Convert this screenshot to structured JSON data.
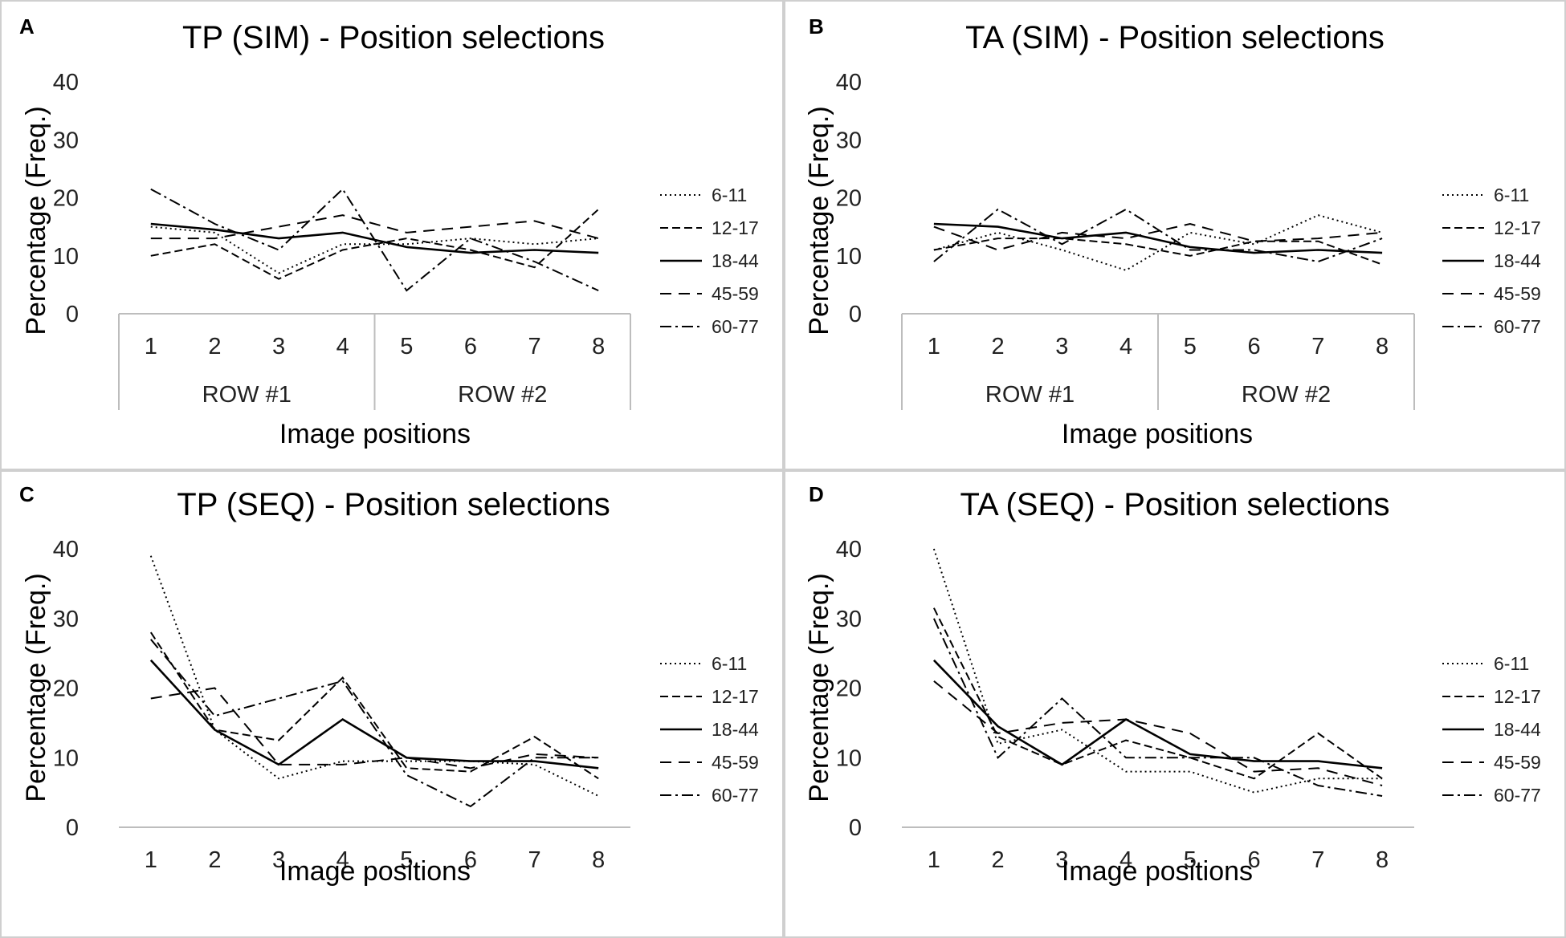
{
  "series_styles": {
    "6-11": {
      "dash": "2 4",
      "width": 2
    },
    "12-17": {
      "dash": "10 5",
      "width": 2
    },
    "18-44": {
      "dash": "",
      "width": 2.6
    },
    "45-59": {
      "dash": "14 9",
      "width": 2
    },
    "60-77": {
      "dash": "14 5 3 5",
      "width": 2
    }
  },
  "chart_data": [
    {
      "letter": "A",
      "type": "line",
      "title": "TP (SIM) - Position selections",
      "xlabel": "Image positions",
      "ylabel": "Percentage (Freq.)",
      "ylim": [
        0,
        40
      ],
      "yticks": [
        0,
        10,
        20,
        30,
        40
      ],
      "categories": [
        "1",
        "2",
        "3",
        "4",
        "5",
        "6",
        "7",
        "8"
      ],
      "groups": [
        "ROW #1",
        "ROW #2"
      ],
      "series": [
        {
          "name": "6-11",
          "values": [
            15,
            14,
            7,
            12,
            12,
            13,
            12,
            13
          ]
        },
        {
          "name": "12-17",
          "values": [
            10,
            12,
            6,
            11,
            13,
            11,
            8,
            18
          ]
        },
        {
          "name": "18-44",
          "values": [
            15.5,
            14.5,
            13,
            14,
            11.5,
            10.5,
            11,
            10.5
          ]
        },
        {
          "name": "45-59",
          "values": [
            13,
            13,
            15,
            17,
            14,
            15,
            16,
            13
          ]
        },
        {
          "name": "60-77",
          "values": [
            21.5,
            15.5,
            11,
            21.5,
            4,
            13,
            9,
            4
          ]
        }
      ]
    },
    {
      "letter": "B",
      "type": "line",
      "title": "TA (SIM) - Position selections",
      "xlabel": "Image positions",
      "ylabel": "Percentage (Freq.)",
      "ylim": [
        0,
        40
      ],
      "yticks": [
        0,
        10,
        20,
        30,
        40
      ],
      "categories": [
        "1",
        "2",
        "3",
        "4",
        "5",
        "6",
        "7",
        "8"
      ],
      "groups": [
        "ROW #1",
        "ROW #2"
      ],
      "series": [
        {
          "name": "6-11",
          "values": [
            11,
            14,
            11,
            7.5,
            14,
            12,
            17,
            14
          ]
        },
        {
          "name": "12-17",
          "values": [
            11,
            13,
            13,
            12,
            10,
            12.5,
            12.5,
            8.5
          ]
        },
        {
          "name": "18-44",
          "values": [
            15.5,
            15,
            13,
            14,
            11.5,
            10.5,
            11,
            10.5
          ]
        },
        {
          "name": "45-59",
          "values": [
            15,
            11,
            14,
            13,
            15.5,
            12.5,
            13,
            14
          ]
        },
        {
          "name": "60-77",
          "values": [
            9,
            18,
            12,
            18,
            11,
            11,
            9,
            13
          ]
        }
      ]
    },
    {
      "letter": "C",
      "type": "line",
      "title": "TP (SEQ) - Position selections",
      "xlabel": "Image positions",
      "ylabel": "Percentage (Freq.)",
      "ylim": [
        0,
        40
      ],
      "yticks": [
        0,
        10,
        20,
        30,
        40
      ],
      "categories": [
        "1",
        "2",
        "3",
        "4",
        "5",
        "6",
        "7",
        "8"
      ],
      "groups": [],
      "series": [
        {
          "name": "6-11",
          "values": [
            39,
            14,
            7,
            9.5,
            9.5,
            9.5,
            9,
            4.5
          ]
        },
        {
          "name": "12-17",
          "values": [
            28,
            14,
            12.5,
            21.5,
            8.5,
            8,
            13,
            7
          ]
        },
        {
          "name": "18-44",
          "values": [
            24,
            14,
            9,
            15.5,
            10,
            9.5,
            9.5,
            8.5
          ]
        },
        {
          "name": "45-59",
          "values": [
            18.5,
            20,
            9,
            9,
            10,
            8.5,
            10.5,
            10
          ]
        },
        {
          "name": "60-77",
          "values": [
            27,
            16,
            18.5,
            21,
            7.5,
            3,
            10,
            10
          ]
        }
      ]
    },
    {
      "letter": "D",
      "type": "line",
      "title": "TA (SEQ) - Position selections",
      "xlabel": "Image positions",
      "ylabel": "Percentage (Freq.)",
      "ylim": [
        0,
        40
      ],
      "yticks": [
        0,
        10,
        20,
        30,
        40
      ],
      "categories": [
        "1",
        "2",
        "3",
        "4",
        "5",
        "6",
        "7",
        "8"
      ],
      "groups": [],
      "series": [
        {
          "name": "6-11",
          "values": [
            40,
            12,
            14,
            8,
            8,
            5,
            7,
            7
          ]
        },
        {
          "name": "12-17",
          "values": [
            31.5,
            13,
            9,
            12.5,
            10,
            7,
            13.5,
            7
          ]
        },
        {
          "name": "18-44",
          "values": [
            24,
            14.5,
            9,
            15.5,
            10.5,
            9.5,
            9.5,
            8.5
          ]
        },
        {
          "name": "45-59",
          "values": [
            21,
            13.5,
            15,
            15.5,
            13.5,
            8,
            8.5,
            6
          ]
        },
        {
          "name": "60-77",
          "values": [
            30,
            10,
            18.5,
            10,
            10,
            10,
            6,
            4.5
          ]
        }
      ]
    }
  ]
}
